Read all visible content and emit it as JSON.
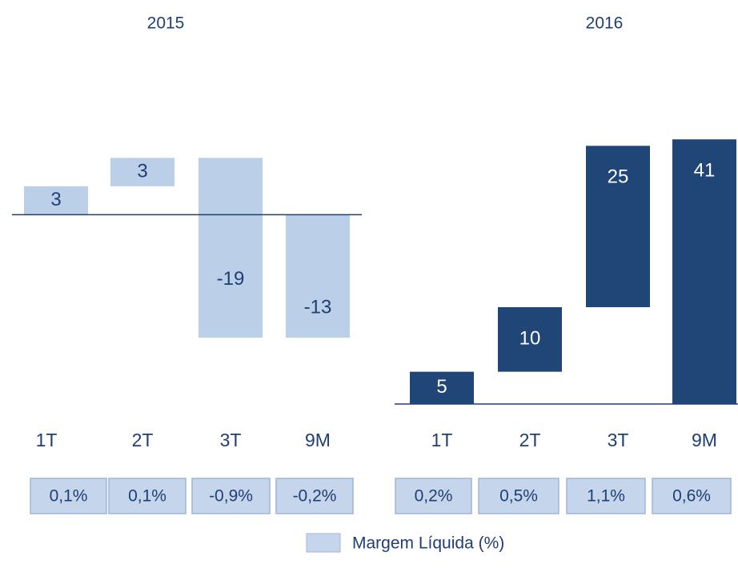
{
  "chart_data": [
    {
      "type": "waterfall",
      "title": "2015",
      "categories": [
        "1T",
        "2T",
        "3T",
        "9M"
      ],
      "values": [
        3,
        3,
        -19,
        -13
      ],
      "color": "#bccfe8",
      "label_color": "#1f3f73",
      "ylim": [
        -20,
        10
      ],
      "margin": {
        "values": [
          0.1,
          0.1,
          -0.9,
          -0.2
        ],
        "value_labels": [
          "0,1%",
          "0,1%",
          "-0,9%",
          "-0,2%"
        ]
      }
    },
    {
      "type": "waterfall",
      "title": "2016",
      "categories": [
        "1T",
        "2T",
        "3T",
        "9M"
      ],
      "values": [
        5,
        10,
        25,
        41
      ],
      "color": "#1f4677",
      "label_color": "#ffffff",
      "ylim": [
        0,
        44
      ],
      "margin": {
        "values": [
          0.2,
          0.5,
          1.1,
          0.6
        ],
        "value_labels": [
          "0,2%",
          "0,5%",
          "1,1%",
          "0,6%"
        ]
      }
    }
  ],
  "legend": {
    "label": "Margem Líquida  (%)",
    "color": "#c5d6ec"
  }
}
